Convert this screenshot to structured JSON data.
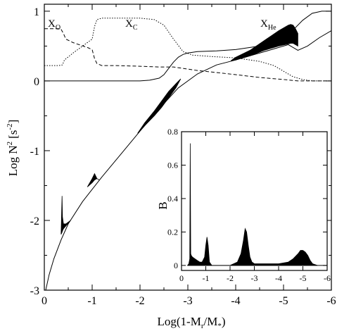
{
  "chart_data": [
    {
      "type": "line",
      "xlabel": "Log(1-M",
      "xlabel_sub": "r",
      "xlabel_mid": "/M",
      "xlabel_sub2": "*",
      "xlabel_end": ")",
      "ylabel": "Log N",
      "ylabel_sup": "2",
      "ylabel_unit": "[s",
      "ylabel_unit_sup": "-2",
      "ylabel_unit_end": "]",
      "xlim": [
        0,
        -6
      ],
      "ylim": [
        -3,
        1.1
      ],
      "x_ticks": [
        {
          "v": 0,
          "label": "0"
        },
        {
          "v": -1,
          "label": "-1"
        },
        {
          "v": -2,
          "label": "-2"
        },
        {
          "v": -3,
          "label": "-3"
        },
        {
          "v": -4,
          "label": "-4"
        },
        {
          "v": -5,
          "label": "-5"
        },
        {
          "v": -6,
          "label": "-6"
        }
      ],
      "y_ticks": [
        {
          "v": -3,
          "label": "-3"
        },
        {
          "v": -2,
          "label": "-2"
        },
        {
          "v": -1,
          "label": "-1"
        },
        {
          "v": 0,
          "label": "0"
        },
        {
          "v": 1,
          "label": "1"
        }
      ],
      "series": [
        {
          "style": "solid",
          "x": [
            -0.03,
            -0.1,
            -0.2,
            -0.35,
            -0.5,
            -0.8,
            -1.2,
            -1.6,
            -2.0,
            -2.4,
            -2.8,
            -3.2,
            -3.6,
            -4.0,
            -4.4,
            -4.8,
            -5.1,
            -5.3,
            -5.5,
            -5.75,
            -6.0
          ],
          "y": [
            -3.0,
            -2.78,
            -2.55,
            -2.28,
            -2.05,
            -1.73,
            -1.38,
            -1.05,
            -0.72,
            -0.4,
            -0.1,
            0.1,
            0.23,
            0.3,
            0.38,
            0.46,
            0.52,
            0.44,
            0.5,
            0.62,
            0.72
          ]
        },
        {
          "name_main": "X",
          "name_sub": "He",
          "style": "solid",
          "x": [
            0,
            -0.5,
            -1.0,
            -1.5,
            -2.0,
            -2.2,
            -2.4,
            -2.5,
            -2.6,
            -2.7,
            -2.8,
            -2.9,
            -3.0,
            -3.2,
            -3.6,
            -4.0,
            -4.4,
            -4.8,
            -5.0,
            -5.2,
            -5.4,
            -5.6,
            -5.8,
            -6.0
          ],
          "y": [
            0,
            0,
            0,
            0,
            0,
            0.01,
            0.04,
            0.09,
            0.18,
            0.27,
            0.34,
            0.38,
            0.4,
            0.42,
            0.43,
            0.45,
            0.49,
            0.56,
            0.63,
            0.73,
            0.87,
            0.97,
            1.0,
            1.0
          ]
        },
        {
          "name_main": "X",
          "name_sub": "C",
          "style": "dotted",
          "x": [
            0,
            -0.3,
            -0.38,
            -0.42,
            -0.6,
            -0.8,
            -1.0,
            -1.05,
            -1.1,
            -1.2,
            -1.5,
            -2.0,
            -2.3,
            -2.5,
            -2.7,
            -2.9,
            -3.1,
            -3.5,
            -4.0,
            -4.5,
            -4.8,
            -5.0,
            -5.2,
            -5.4,
            -5.6,
            -6.0
          ],
          "y": [
            0.22,
            0.22,
            0.23,
            0.3,
            0.4,
            0.5,
            0.6,
            0.78,
            0.88,
            0.9,
            0.9,
            0.9,
            0.88,
            0.8,
            0.6,
            0.42,
            0.37,
            0.35,
            0.33,
            0.28,
            0.22,
            0.14,
            0.06,
            0.02,
            0.0,
            0.0
          ]
        },
        {
          "name_main": "X",
          "name_sub": "O",
          "style": "dashed",
          "x": [
            0,
            -0.3,
            -0.35,
            -0.4,
            -0.45,
            -0.6,
            -0.9,
            -1.0,
            -1.05,
            -1.1,
            -1.2,
            -1.5,
            -2.0,
            -2.4,
            -2.7,
            -2.9,
            -3.2,
            -3.6,
            -4.0,
            -4.5,
            -5.0,
            -5.3,
            -5.6,
            -6.0
          ],
          "y": [
            0.75,
            0.75,
            0.74,
            0.68,
            0.6,
            0.55,
            0.48,
            0.45,
            0.32,
            0.25,
            0.22,
            0.22,
            0.21,
            0.2,
            0.2,
            0.18,
            0.15,
            0.12,
            0.09,
            0.05,
            0.02,
            0.0,
            0.0,
            0.0
          ]
        }
      ],
      "filled_regions": [
        {
          "x": [
            -0.35,
            -0.37,
            -0.38,
            -0.4,
            -0.45,
            -0.55
          ],
          "y_upper": [
            -2.2,
            -1.65,
            -1.95,
            -2.05,
            -2.05,
            -2.0
          ],
          "y_lower": [
            -2.2,
            -2.17,
            -2.15,
            -2.12,
            -2.08,
            -2.0
          ]
        },
        {
          "x": [
            -0.9,
            -1.0,
            -1.05,
            -1.1,
            -1.15
          ],
          "y_upper": [
            -1.52,
            -1.4,
            -1.33,
            -1.4,
            -1.42
          ],
          "y_lower": [
            -1.52,
            -1.46,
            -1.42,
            -1.4,
            -1.42
          ]
        },
        {
          "x": [
            -1.95,
            -2.1,
            -2.3,
            -2.45,
            -2.6,
            -2.75,
            -2.85
          ],
          "y_upper": [
            -0.75,
            -0.6,
            -0.43,
            -0.29,
            -0.15,
            -0.04,
            0.03
          ],
          "y_lower": [
            -0.75,
            -0.64,
            -0.5,
            -0.38,
            -0.24,
            -0.1,
            0.03
          ]
        },
        {
          "x": [
            -3.9,
            -4.0,
            -4.3,
            -4.6,
            -4.9,
            -5.1,
            -5.15,
            -5.2,
            -5.25,
            -5.3
          ],
          "y_upper": [
            0.29,
            0.34,
            0.44,
            0.58,
            0.72,
            0.8,
            0.81,
            0.8,
            0.75,
            0.68
          ],
          "y_lower": [
            0.29,
            0.3,
            0.36,
            0.44,
            0.5,
            0.53,
            0.54,
            0.54,
            0.52,
            0.5
          ]
        }
      ]
    },
    {
      "type": "area",
      "ylabel": "B",
      "xlim": [
        0,
        -6
      ],
      "ylim": [
        -0.03,
        0.8
      ],
      "x_ticks": [
        {
          "v": 0,
          "label": "0"
        },
        {
          "v": -1,
          "label": "-1"
        },
        {
          "v": -2,
          "label": "-2"
        },
        {
          "v": -3,
          "label": "-3"
        },
        {
          "v": -4,
          "label": "-4"
        },
        {
          "v": -5,
          "label": "-5"
        },
        {
          "v": -6,
          "label": "-6"
        }
      ],
      "y_ticks": [
        {
          "v": 0,
          "label": "0"
        },
        {
          "v": 0.2,
          "label": "0.2"
        },
        {
          "v": 0.4,
          "label": "0.4"
        },
        {
          "v": 0.6,
          "label": "0.6"
        },
        {
          "v": 0.8,
          "label": "0.8"
        }
      ],
      "x": [
        -0.25,
        -0.3,
        -0.34,
        -0.36,
        -0.38,
        -0.4,
        -0.45,
        -0.55,
        -0.65,
        -0.75,
        -0.85,
        -0.95,
        -1.0,
        -1.05,
        -1.1,
        -1.15,
        -1.25,
        -1.5,
        -2.0,
        -2.3,
        -2.45,
        -2.55,
        -2.62,
        -2.68,
        -2.75,
        -2.82,
        -2.9,
        -3.0,
        -3.5,
        -4.0,
        -4.4,
        -4.6,
        -4.8,
        -4.9,
        -5.0,
        -5.1,
        -5.2,
        -5.3,
        -5.4,
        -5.6
      ],
      "values": [
        0.0,
        0.01,
        0.04,
        0.73,
        0.07,
        0.06,
        0.05,
        0.04,
        0.03,
        0.02,
        0.02,
        0.05,
        0.12,
        0.17,
        0.12,
        0.02,
        0.0,
        0.0,
        0.0,
        0.02,
        0.07,
        0.15,
        0.22,
        0.2,
        0.12,
        0.05,
        0.02,
        0.01,
        0.01,
        0.01,
        0.02,
        0.04,
        0.07,
        0.09,
        0.09,
        0.08,
        0.06,
        0.03,
        0.01,
        0.0
      ]
    }
  ]
}
